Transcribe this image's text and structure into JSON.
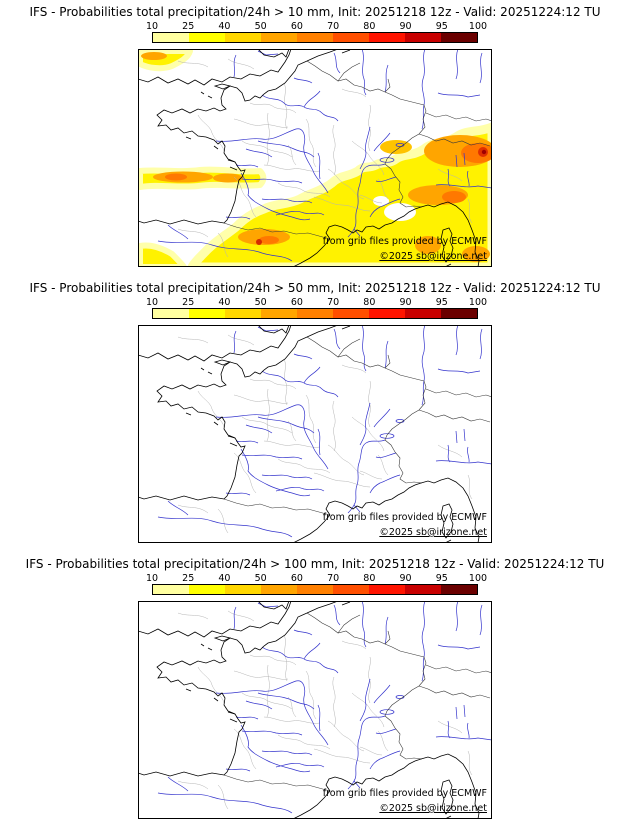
{
  "panels": [
    {
      "id": "10mm",
      "threshold": "10 mm",
      "has_precip": true,
      "title": "IFS - Probabilities total precipitation/24h > 10 mm, Init: 20251218 12z - Valid: 20251224:12 TU"
    },
    {
      "id": "50mm",
      "threshold": "50 mm",
      "has_precip": false,
      "title": "IFS - Probabilities total precipitation/24h > 50 mm, Init: 20251218 12z - Valid: 20251224:12 TU"
    },
    {
      "id": "100mm",
      "threshold": "100 mm",
      "has_precip": false,
      "title": "IFS - Probabilities total precipitation/24h > 100 mm, Init: 20251218 12z - Valid: 20251224:12 TU"
    }
  ],
  "colorbar": {
    "tick_labels": [
      "10",
      "25",
      "40",
      "50",
      "60",
      "70",
      "80",
      "90",
      "95",
      "100"
    ],
    "segment_colors": [
      "#ffffa0",
      "#ffff00",
      "#ffd700",
      "#ffa500",
      "#ff8000",
      "#ff4f00",
      "#ff1400",
      "#c80000",
      "#6b0000"
    ]
  },
  "map": {
    "attribution_line1": "from grib files provided by ECMWF",
    "attribution_line2": "©2025 sb@irizone.net",
    "coast_color": "#000000",
    "country_border_color": "#3a3a3a",
    "admin_border_color": "#b4b4b4",
    "river_color": "#3333cc",
    "precip_palette": {
      "fringe": "#ffffaa",
      "yellow": "#fff200",
      "orange": "#ffa500",
      "dark_orange": "#ff7800",
      "red": "#e03000",
      "dark_red": "#a00000"
    }
  }
}
